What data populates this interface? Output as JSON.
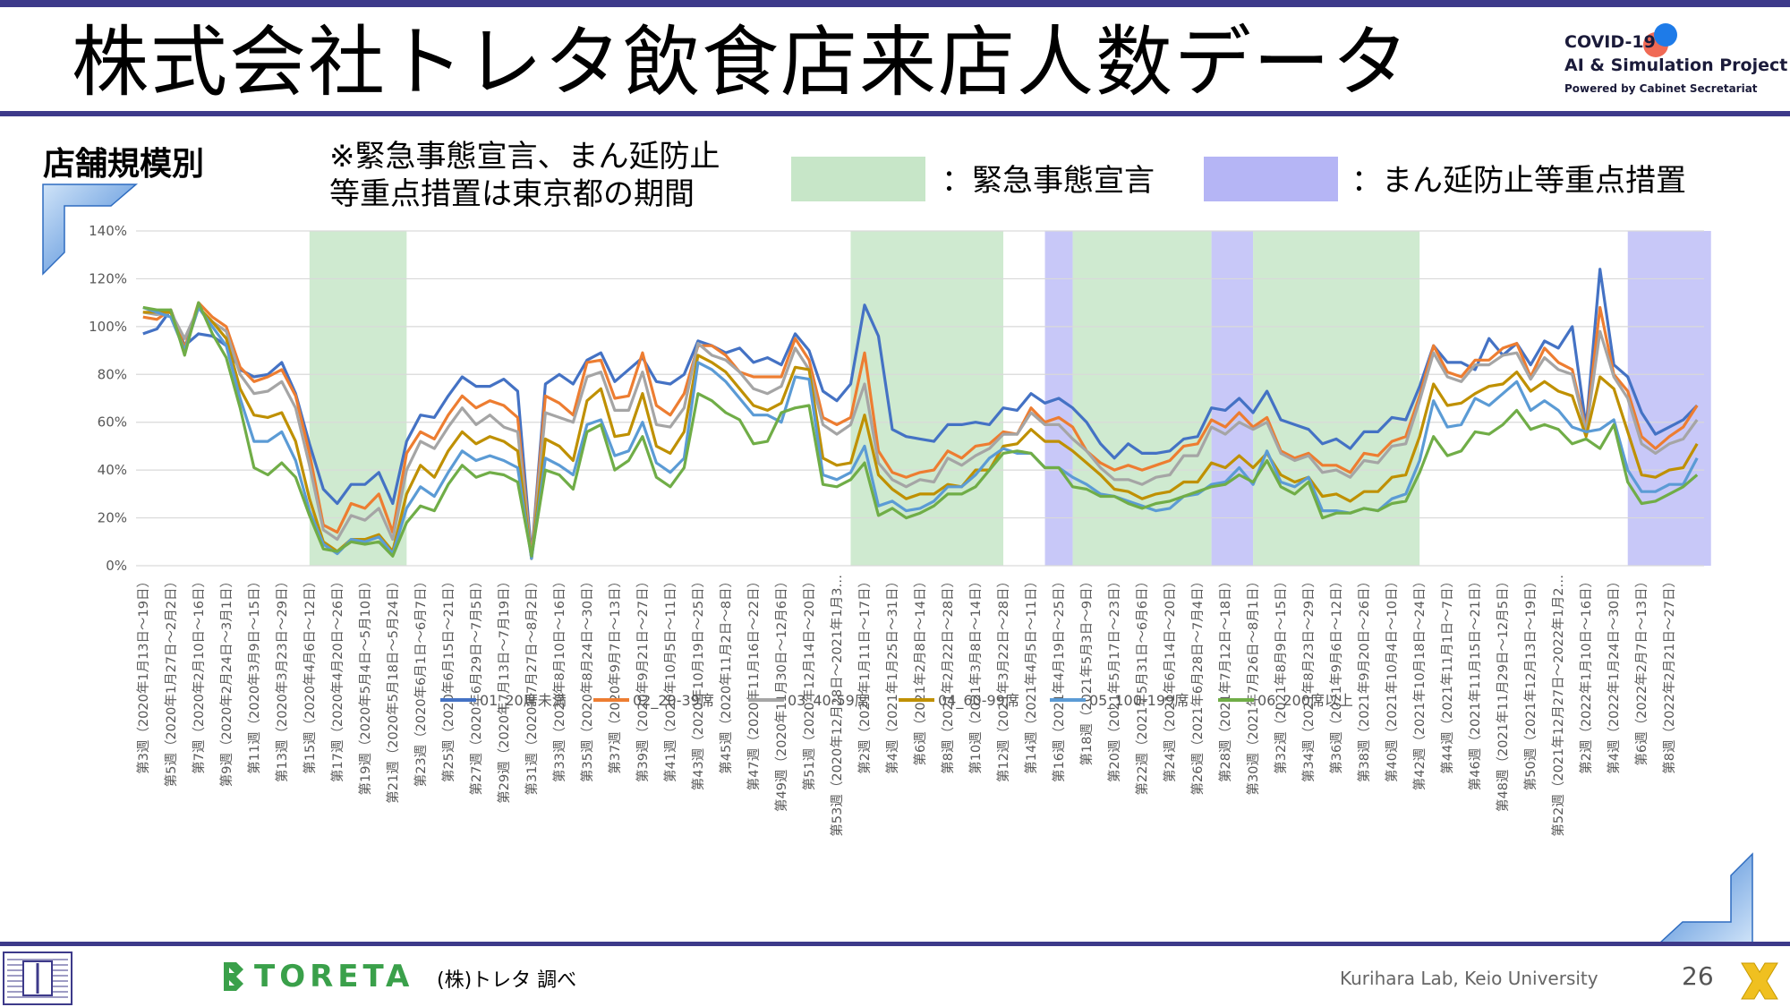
{
  "slide": {
    "title": "株式会社トレタ飲食店来店人数データ",
    "section_label": "店舗規模別",
    "note_line1": "※緊急事態宣言、まん延防止",
    "note_line2": "等重点措置は東京都の期間",
    "legend_green": "：緊急事態宣言",
    "legend_blue": "：まん延防止等重点措置",
    "source": "(株)トレタ 調べ",
    "toreta_logo": "TORETA",
    "lab": "Kurihara Lab, Keio University",
    "page_number": "26"
  },
  "logo": {
    "line1": "COVID-19",
    "line2": "AI & Simulation Project",
    "line3": "Powered by Cabinet Secretariat"
  },
  "colors": {
    "accent_bar": "#3d3a8a",
    "emergency": "#c7e6c8",
    "priority": "#b5b5f5"
  },
  "chart_data": {
    "type": "line",
    "y_ticks": [
      "0%",
      "20%",
      "40%",
      "60%",
      "80%",
      "100%",
      "120%",
      "140%"
    ],
    "ylim": [
      0,
      140
    ],
    "x_tick_labels": [
      "第3週（2020年1月13日～19日）",
      "第5週（2020年1月27日～2月2日）",
      "第7週（2020年2月10日～16日）",
      "第9週（2020年2月24日～3月1日）",
      "第11週（2020年3月9日～15日）",
      "第13週（2020年3月23日～29日）",
      "第15週（2020年4月6日～12日）",
      "第17週（2020年4月20日～26日）",
      "第19週（2020年5月4日～5月10日）",
      "第21週（2020年5月18日～5月24日）",
      "第23週（2020年6月1日～6月7日）",
      "第25週（2020年6月15日～21日）",
      "第27週（2020年6月29日～7月5日）",
      "第29週（2020年7月13日～7月19日）",
      "第31週（2020年7月27日～8月2日）",
      "第33週（2020年8月10日～16日）",
      "第35週（2020年8月24日～30日）",
      "第37週（2020年9月7日～13日）",
      "第39週（2020年9月21日～27日）",
      "第41週（2020年10月5日～11日）",
      "第43週（2020年10月19日～25日）",
      "第45週（2020年11月2日～8日）",
      "第47週（2020年11月16日～22日）",
      "第49週（2020年11月30日～12月6日）",
      "第51週（2020年12月14日～20日）",
      "第53週（2020年12月28日～2021年1月3…",
      "第2週（2021年1月11日～17日）",
      "第4週（2021年1月25日～31日）",
      "第6週（2021年2月8日～14日）",
      "第8週（2021年2月22日～28日）",
      "第10週（2021年3月8日～14日）",
      "第12週（2021年3月22日～28日）",
      "第14週（2021年4月5日～11日）",
      "第16週（2021年4月19日～25日）",
      "第18週（2021年5月3日～9日）",
      "第20週（2021年5月17日～23日）",
      "第22週（2021年5月31日～6月6日）",
      "第24週（2021年6月14日～20日）",
      "第26週（2021年6月28日～7月4日）",
      "第28週（2021年7月12日～18日）",
      "第30週（2021年7月26日～8月1日）",
      "第32週（2021年8月9日～15日）",
      "第34週（2021年8月23日～29日）",
      "第36週（2021年9月6日～12日）",
      "第38週（2021年9月20日～26日）",
      "第40週（2021年10月4日～10日）",
      "第42週（2021年10月18日～24日）",
      "第44週（2021年11月1日～7日）",
      "第46週（2021年11月15日～21日）",
      "第48週（2021年11月29日～12月5日）",
      "第50週（2021年12月13日～19日）",
      "第52週（2021年12月27日～2022年1月2…",
      "第2週（2022年1月10日～16日）",
      "第4週（2022年1月24日～30日）",
      "第6週（2022年2月7日～13日）",
      "第8週（2022年2月21日～27日）"
    ],
    "shaded_periods": [
      {
        "kind": "emergency",
        "start": 12.5,
        "end": 19.5
      },
      {
        "kind": "emergency",
        "start": 51.5,
        "end": 62.5
      },
      {
        "kind": "priority",
        "start": 65.5,
        "end": 67.5
      },
      {
        "kind": "emergency",
        "start": 67.5,
        "end": 77.5
      },
      {
        "kind": "priority",
        "start": 77.5,
        "end": 80.5
      },
      {
        "kind": "emergency",
        "start": 80.5,
        "end": 92.5
      },
      {
        "kind": "priority",
        "start": 107.5,
        "end": 113.5
      }
    ],
    "series": [
      {
        "name": "01_20席未満",
        "color": "#4472c4",
        "values": [
          97,
          99,
          107,
          92,
          97,
          96,
          92,
          82,
          79,
          80,
          85,
          72,
          51,
          32,
          26,
          34,
          34,
          39,
          26,
          52,
          63,
          62,
          71,
          79,
          75,
          75,
          78,
          73,
          4,
          76,
          80,
          76,
          86,
          89,
          77,
          82,
          87,
          77,
          76,
          80,
          94,
          92,
          89,
          91,
          85,
          87,
          84,
          97,
          90,
          73,
          69,
          76,
          109,
          96,
          57,
          54,
          53,
          52,
          59,
          59,
          60,
          59,
          66,
          65,
          72,
          68,
          70,
          66,
          60,
          51,
          45,
          51,
          47,
          47,
          48,
          53,
          54,
          66,
          65,
          70,
          64,
          73,
          61,
          59,
          57,
          51,
          53,
          49,
          56,
          56,
          62,
          61,
          75,
          92,
          85,
          85,
          82,
          95,
          88,
          93,
          84,
          94,
          91,
          100,
          58,
          124,
          84,
          79,
          64,
          55,
          58,
          61,
          67
        ]
      },
      {
        "name": "02_20-39席",
        "color": "#ed7d31",
        "values": [
          104,
          103,
          107,
          91,
          110,
          104,
          100,
          83,
          77,
          79,
          82,
          71,
          47,
          17,
          14,
          26,
          24,
          30,
          14,
          47,
          56,
          53,
          63,
          71,
          66,
          69,
          67,
          62,
          3,
          71,
          68,
          63,
          85,
          86,
          70,
          71,
          89,
          67,
          63,
          72,
          92,
          92,
          88,
          81,
          79,
          79,
          79,
          95,
          86,
          62,
          59,
          62,
          89,
          48,
          39,
          37,
          39,
          40,
          48,
          45,
          50,
          51,
          56,
          55,
          66,
          60,
          62,
          58,
          48,
          43,
          40,
          42,
          40,
          42,
          44,
          50,
          51,
          61,
          58,
          64,
          58,
          62,
          48,
          45,
          47,
          42,
          42,
          39,
          47,
          46,
          52,
          54,
          71,
          92,
          81,
          79,
          86,
          86,
          91,
          93,
          79,
          91,
          85,
          82,
          57,
          108,
          80,
          73,
          54,
          49,
          54,
          58,
          67
        ]
      },
      {
        "name": "03_40-59席",
        "color": "#a5a5a5",
        "values": [
          106,
          105,
          106,
          95,
          108,
          102,
          98,
          80,
          72,
          73,
          77,
          66,
          42,
          15,
          11,
          21,
          19,
          24,
          11,
          40,
          52,
          49,
          58,
          66,
          59,
          63,
          58,
          56,
          3,
          64,
          62,
          60,
          79,
          81,
          65,
          65,
          81,
          59,
          58,
          66,
          93,
          88,
          86,
          81,
          74,
          72,
          75,
          91,
          82,
          59,
          55,
          59,
          76,
          43,
          36,
          33,
          36,
          35,
          45,
          42,
          46,
          49,
          55,
          55,
          64,
          59,
          59,
          53,
          48,
          41,
          36,
          36,
          34,
          37,
          38,
          46,
          46,
          58,
          55,
          60,
          57,
          60,
          47,
          44,
          46,
          39,
          40,
          37,
          44,
          43,
          50,
          51,
          69,
          89,
          79,
          77,
          84,
          84,
          88,
          89,
          78,
          87,
          82,
          80,
          56,
          98,
          79,
          70,
          51,
          47,
          51,
          53,
          61
        ]
      },
      {
        "name": "04_60-99席",
        "color": "#bf9000",
        "values": [
          106,
          106,
          106,
          90,
          108,
          102,
          95,
          74,
          63,
          62,
          64,
          52,
          28,
          10,
          6,
          11,
          11,
          13,
          6,
          30,
          42,
          37,
          48,
          56,
          51,
          54,
          52,
          48,
          3,
          53,
          50,
          44,
          69,
          74,
          54,
          55,
          72,
          50,
          47,
          56,
          88,
          85,
          81,
          74,
          67,
          65,
          68,
          83,
          82,
          45,
          42,
          43,
          63,
          38,
          32,
          28,
          30,
          30,
          34,
          33,
          40,
          40,
          50,
          51,
          57,
          52,
          52,
          48,
          43,
          38,
          32,
          31,
          28,
          30,
          31,
          35,
          35,
          43,
          41,
          46,
          41,
          47,
          38,
          35,
          37,
          29,
          30,
          27,
          31,
          31,
          37,
          38,
          54,
          76,
          67,
          68,
          72,
          75,
          76,
          81,
          73,
          77,
          73,
          71,
          54,
          79,
          74,
          56,
          38,
          37,
          40,
          41,
          51
        ]
      },
      {
        "name": "05_100-199席",
        "color": "#5b9bd5",
        "values": [
          108,
          106,
          104,
          90,
          108,
          100,
          92,
          70,
          52,
          52,
          56,
          44,
          23,
          9,
          5,
          11,
          10,
          12,
          5,
          24,
          33,
          29,
          39,
          48,
          44,
          46,
          44,
          41,
          3,
          45,
          42,
          38,
          59,
          61,
          46,
          48,
          60,
          43,
          39,
          45,
          85,
          82,
          77,
          70,
          63,
          63,
          60,
          79,
          78,
          38,
          36,
          39,
          50,
          25,
          27,
          23,
          24,
          27,
          33,
          33,
          38,
          45,
          49,
          47,
          47,
          41,
          41,
          37,
          34,
          30,
          29,
          27,
          25,
          23,
          24,
          29,
          30,
          34,
          35,
          41,
          34,
          48,
          35,
          33,
          37,
          23,
          23,
          22,
          24,
          23,
          28,
          30,
          44,
          69,
          58,
          59,
          70,
          67,
          72,
          77,
          65,
          69,
          65,
          58,
          56,
          57,
          61,
          40,
          31,
          31,
          34,
          34,
          45
        ]
      },
      {
        "name": "06_200席以上",
        "color": "#70ad47",
        "values": [
          108,
          107,
          107,
          88,
          110,
          97,
          87,
          66,
          41,
          38,
          43,
          37,
          21,
          7,
          6,
          10,
          9,
          10,
          4,
          18,
          25,
          23,
          34,
          42,
          37,
          39,
          38,
          35,
          4,
          40,
          38,
          32,
          56,
          59,
          40,
          44,
          54,
          37,
          33,
          41,
          72,
          69,
          64,
          61,
          51,
          52,
          64,
          66,
          67,
          34,
          33,
          36,
          43,
          21,
          24,
          20,
          22,
          25,
          30,
          30,
          33,
          40,
          47,
          48,
          47,
          41,
          41,
          33,
          32,
          29,
          29,
          26,
          24,
          26,
          27,
          29,
          31,
          33,
          34,
          38,
          35,
          44,
          33,
          30,
          35,
          20,
          22,
          22,
          24,
          23,
          26,
          27,
          39,
          54,
          46,
          48,
          56,
          55,
          59,
          65,
          57,
          59,
          57,
          51,
          53,
          49,
          59,
          35,
          26,
          27,
          30,
          33,
          38
        ]
      }
    ],
    "legend_position": "bottom"
  }
}
